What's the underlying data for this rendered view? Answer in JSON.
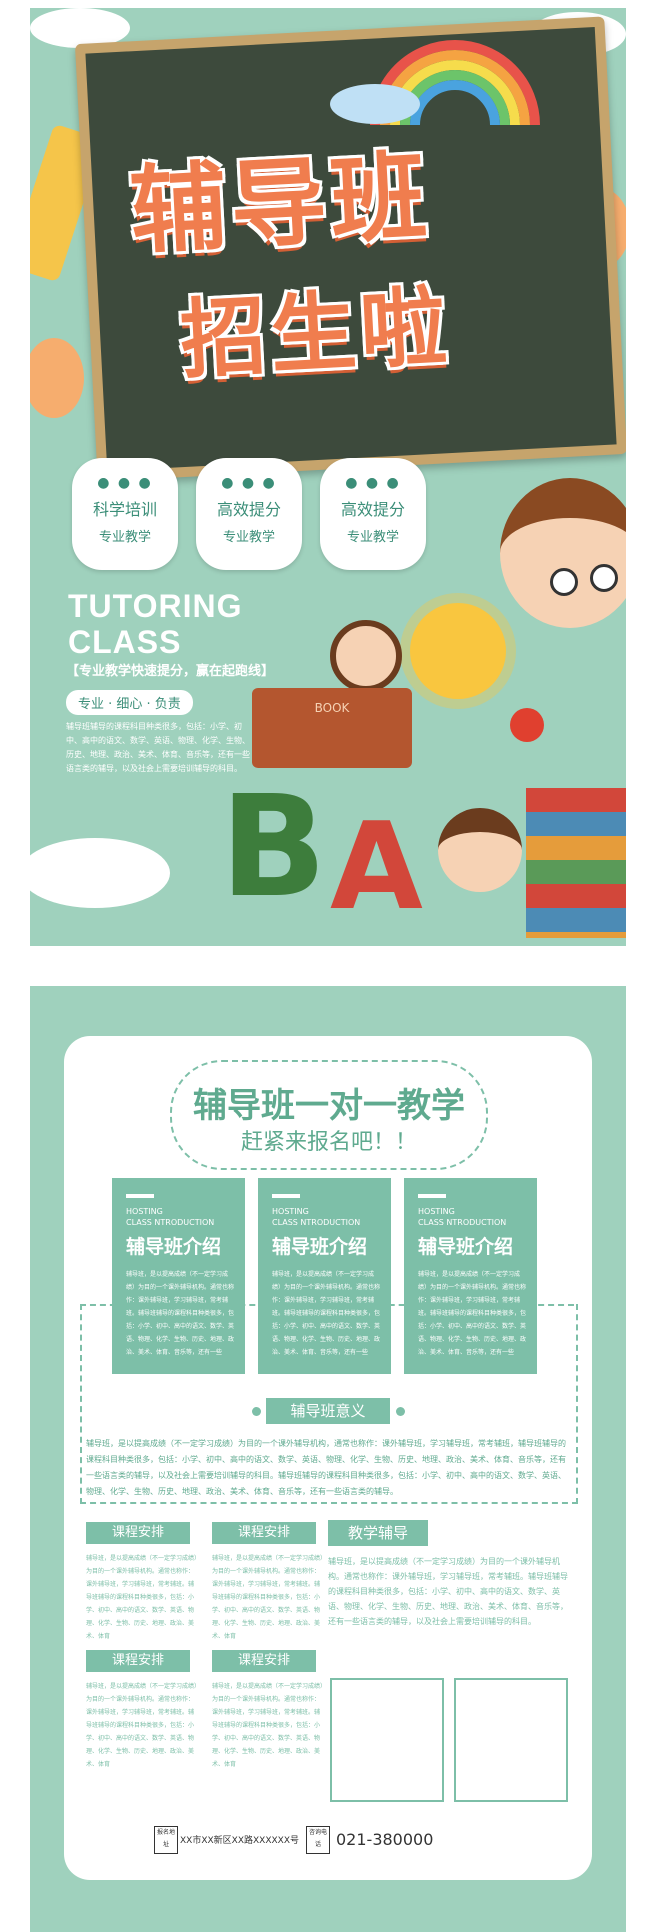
{
  "poster_top": {
    "title_line1": "辅导班",
    "title_line2": "招生啦",
    "features": [
      {
        "title": "科学培训",
        "subtitle": "专业教学"
      },
      {
        "title": "高效提分",
        "subtitle": "专业教学"
      },
      {
        "title": "高效提分",
        "subtitle": "专业教学"
      }
    ],
    "english_title_line1": "TUTORING",
    "english_title_line2": "CLASS",
    "slogan": "【专业教学快速提分，赢在起跑线】",
    "tagline": "专业 · 细心 · 负责",
    "intro_text": "辅导班辅导的课程科目种类很多，包括：小学、初中、高中的语文、数学、英语、物理、化学、生物、历史、地理、政治、美术、体育、音乐等，还有一些语言类的辅导，以及社会上需要培训辅导的科目。",
    "book_label": "BOOK"
  },
  "poster_bottom": {
    "header_main": "辅导班一对一教学",
    "header_sub": "赶紧来报名吧！！",
    "intro_boxes": [
      {
        "en_line1": "HOSTING",
        "en_line2": "CLASS NTRODUCTION",
        "cn": "辅导班介绍",
        "text": "辅导班，是以提高成绩（不一定学习成绩）为目的一个课外辅导机构。通常也称作：课外辅导班，学习辅导班，常考辅班。辅导班辅导的课程科目种类很多，包括：小学、初中、高中的语文、数学、英语、物理、化学、生物、历史、地理、政治、美术、体育、音乐等，还有一些"
      },
      {
        "en_line1": "HOSTING",
        "en_line2": "CLASS NTRODUCTION",
        "cn": "辅导班介绍",
        "text": "辅导班，是以提高成绩（不一定学习成绩）为目的一个课外辅导机构。通常也称作：课外辅导班，学习辅导班，常考辅班。辅导班辅导的课程科目种类很多，包括：小学、初中、高中的语文、数学、英语、物理、化学、生物、历史、地理、政治、美术、体育、音乐等，还有一些"
      },
      {
        "en_line1": "HOSTING",
        "en_line2": "CLASS NTRODUCTION",
        "cn": "辅导班介绍",
        "text": "辅导班，是以提高成绩（不一定学习成绩）为目的一个课外辅导机构。通常也称作：课外辅导班，学习辅导班，常考辅班。辅导班辅导的课程科目种类很多，包括：小学、初中、高中的语文、数学、英语、物理、化学、生物、历史、地理、政治、美术、体育、音乐等，还有一些"
      }
    ],
    "significance_label": "辅导班意义",
    "significance_text": "辅导班，是以提高成绩（不一定学习成绩）为目的一个课外辅导机构，通常也称作：课外辅导班，学习辅导班，常考辅班，辅导班辅导的课程科目种类很多，包括：小学、初中、高中的语文、数学、英语、物理、化学、生物、历史、地理、政治、美术、体育、音乐等，还有一些语言类的辅导，以及社会上需要培训辅导的科目。辅导班辅导的课程科目种类很多，包括：小学、初中、高中的语文、数学、英语、物理、化学、生物、历史、地理、政治、美术、体育、音乐等，还有一些语言类的辅导。",
    "courses": [
      {
        "label": "课程安排",
        "text": "辅导班，是以提高成绩（不一定学习成绩）为目的一个课外辅导机构。通常也称作：课外辅导班，学习辅导班，常考辅班。辅导班辅导的课程科目种类很多，包括：小学、初中、高中的语文、数学、英语、物理、化学、生物、历史、地理、政治、美术、体育"
      },
      {
        "label": "课程安排",
        "text": "辅导班，是以提高成绩（不一定学习成绩）为目的一个课外辅导机构。通常也称作：课外辅导班，学习辅导班，常考辅班。辅导班辅导的课程科目种类很多，包括：小学、初中、高中的语文、数学、英语、物理、化学、生物、历史、地理、政治、美术、体育"
      },
      {
        "label": "课程安排",
        "text": "辅导班，是以提高成绩（不一定学习成绩）为目的一个课外辅导机构。通常也称作：课外辅导班，学习辅导班，常考辅班。辅导班辅导的课程科目种类很多，包括：小学、初中、高中的语文、数学、英语、物理、化学、生物、历史、地理、政治、美术、体育"
      },
      {
        "label": "课程安排",
        "text": "辅导班，是以提高成绩（不一定学习成绩）为目的一个课外辅导机构。通常也称作：课外辅导班，学习辅导班，常考辅班。辅导班辅导的课程科目种类很多，包括：小学、初中、高中的语文、数学、英语、物理、化学、生物、历史、地理、政治、美术、体育"
      }
    ],
    "teaching_label": "教学辅导",
    "teaching_text": "辅导班，是以提高成绩（不一定学习成绩）为目的一个课外辅导机构。通常也称作：课外辅导班，学习辅导班，常考辅班。辅导班辅导的课程科目种类很多，包括：小学、初中、高中的语文、数学、英语、物理、化学、生物、历史、地理、政治、美术、体育、音乐等，还有一些语言类的辅导，以及社会上需要培训辅导的科目。",
    "footer": {
      "address_tag": "报名地址",
      "address": "XX市XX新区XX路XXXXXX号",
      "phone_tag": "咨询电话",
      "phone": "021-380000"
    }
  },
  "colors": {
    "mint": "#9fd1bd",
    "green": "#7dbfa8",
    "orange": "#f07d4e",
    "board": "#3d4a3c"
  }
}
